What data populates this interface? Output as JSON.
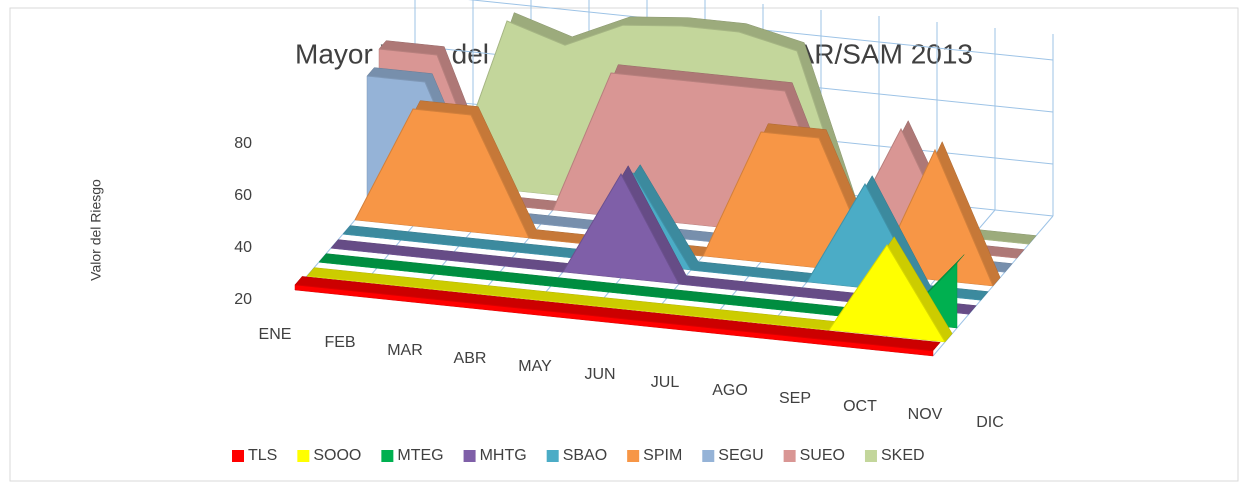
{
  "chart_data": {
    "type": "area3d",
    "title": "Mayor Valor del Riesgo Mensual - FIR CAR/SAM 2013",
    "y_label": "Valor del Riesgo",
    "categories": [
      "ENE",
      "FEB",
      "MAR",
      "ABR",
      "MAY",
      "JUN",
      "JUL",
      "AGO",
      "SEP",
      "OCT",
      "NOV",
      "DIC"
    ],
    "ylim": [
      20,
      90
    ],
    "yticks": [
      20,
      40,
      60,
      80
    ],
    "grid": true,
    "legend": "bottom",
    "series": [
      {
        "name": "TLS",
        "color": "#ff0000",
        "values": [
          22,
          22,
          22,
          22,
          22,
          22,
          22,
          22,
          22,
          22,
          22,
          22
        ]
      },
      {
        "name": "SOOO",
        "color": "#ffff00",
        "values": [
          20,
          20,
          20,
          20,
          20,
          20,
          20,
          20,
          20,
          20,
          55,
          20
        ]
      },
      {
        "name": "MTEG",
        "color": "#00b050",
        "values": [
          20,
          20,
          20,
          20,
          20,
          20,
          20,
          20,
          20,
          20,
          20,
          45
        ]
      },
      {
        "name": "MHTG",
        "color": "#7f5fa8",
        "values": [
          20,
          20,
          20,
          20,
          20,
          60,
          20,
          20,
          20,
          20,
          20,
          20
        ]
      },
      {
        "name": "SBAO",
        "color": "#4bacc6",
        "values": [
          20,
          20,
          20,
          20,
          20,
          55,
          20,
          20,
          20,
          60,
          20,
          20
        ]
      },
      {
        "name": "SPIM",
        "color": "#f79646",
        "values": [
          20,
          65,
          65,
          20,
          20,
          20,
          20,
          70,
          70,
          20,
          70,
          20
        ]
      },
      {
        "name": "SEGU",
        "color": "#95b3d7",
        "values": [
          70,
          70,
          20,
          20,
          20,
          20,
          20,
          20,
          20,
          20,
          20,
          20
        ]
      },
      {
        "name": "SUEO",
        "color": "#d99694",
        "values": [
          75,
          75,
          20,
          20,
          75,
          75,
          75,
          75,
          20,
          65,
          20,
          20
        ]
      },
      {
        "name": "SKED",
        "color": "#c3d69b",
        "values": [
          20,
          20,
          85,
          78,
          88,
          90,
          90,
          85,
          20,
          20,
          20,
          20
        ]
      }
    ]
  }
}
